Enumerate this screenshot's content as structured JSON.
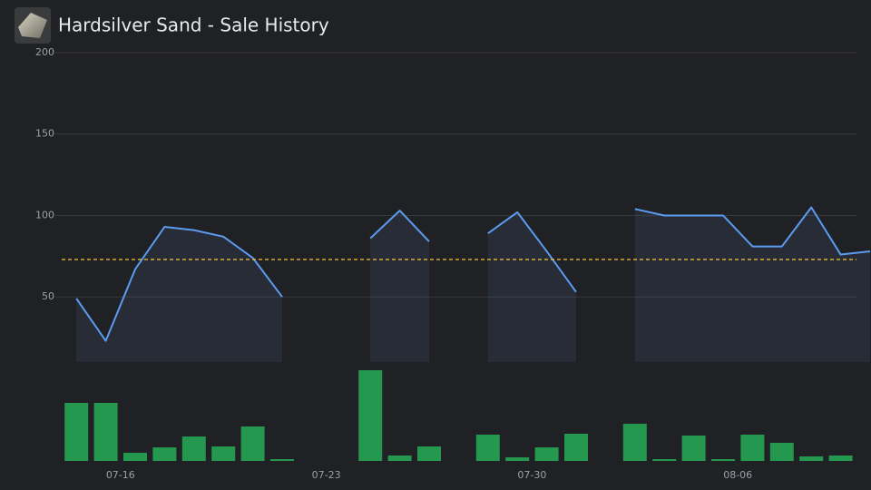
{
  "chart_data": {
    "type": "line",
    "title": "Hardsilver Sand - Sale History",
    "categories": [
      null,
      null,
      "07-16",
      null,
      null,
      null,
      null,
      null,
      null,
      "07-23",
      null,
      null,
      null,
      null,
      null,
      null,
      "07-30",
      null,
      null,
      null,
      null,
      null,
      null,
      "08-06",
      null,
      null,
      null,
      null
    ],
    "ylim": [
      10,
      200
    ],
    "yticks": [
      50,
      100,
      150,
      200
    ],
    "grid": true,
    "y2lim": [
      0,
      100
    ],
    "average": 73,
    "average_color": "#e6b83a",
    "series": [
      {
        "type": "line",
        "color": "#5b9cf0",
        "values": [
          49,
          23,
          67,
          93,
          91,
          87,
          74,
          50,
          null,
          null,
          86,
          103,
          84,
          null,
          89,
          102,
          78,
          53,
          null,
          104,
          100,
          100,
          100,
          81,
          81,
          105,
          76,
          78
        ]
      },
      {
        "type": "bar",
        "axis": "y2",
        "color": "#23984e",
        "values": [
          64,
          64,
          9,
          15,
          27,
          16,
          38,
          2,
          0,
          0,
          100,
          6,
          16,
          0,
          29,
          4,
          15,
          30,
          0,
          41,
          2,
          28,
          2,
          29,
          20,
          5,
          6,
          0
        ]
      }
    ]
  }
}
